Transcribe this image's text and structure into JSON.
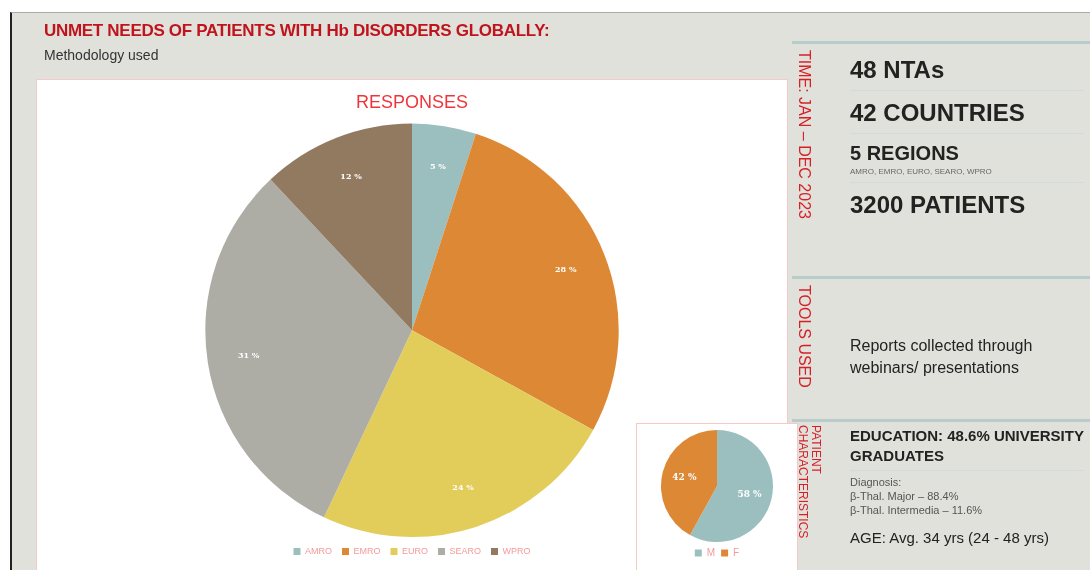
{
  "chart_data": [
    {
      "type": "other",
      "title": "UNMET NEEDS OF PATIENTS WITH Hb DISORDERS GLOBALLY:",
      "subtitle": "Methodology used"
    },
    {
      "type": "pie",
      "title": "RESPONSES",
      "categories": [
        "AMRO",
        "EMRO",
        "EURO",
        "SEARO",
        "WPRO"
      ],
      "values": [
        5,
        28,
        24,
        31,
        12
      ],
      "colors": [
        "#9bbfbf",
        "#dc8834",
        "#e2cc5a",
        "#adada6",
        "#917a60"
      ],
      "value_labels": [
        "5 %",
        "28 %",
        "24 %",
        "31 %",
        "12 %"
      ],
      "legend": "bottom"
    },
    {
      "type": "pie",
      "categories": [
        "M",
        "F"
      ],
      "values": [
        58,
        42
      ],
      "colors": [
        "#9bbfbf",
        "#dc8834"
      ],
      "value_labels": [
        "58 %",
        "42 %"
      ],
      "legend": "bottom"
    },
    {
      "type": "other",
      "title": "TIME: JAN – DEC 2023",
      "annotations": [
        "48 NTAs",
        "42 COUNTRIES",
        "5 REGIONS",
        "AMRO, EMRO, EURO, SEARO, WPRO",
        "3200 PATIENTS"
      ]
    },
    {
      "type": "other",
      "title": "TOOLS USED",
      "annotations": [
        "Reports collected through webinars/ presentations"
      ]
    },
    {
      "type": "other",
      "title": "PATIENT CHARACTERISTICS",
      "annotations": [
        "EDUCATION: 48.6% UNIVERSITY GRADUATES",
        "Diagnosis:",
        "β-Thal. Major – 88.4%",
        "β-Thal. Intermedia – 11.6%",
        "AGE: Avg. 34 yrs (24 - 48 yrs)"
      ]
    }
  ]
}
